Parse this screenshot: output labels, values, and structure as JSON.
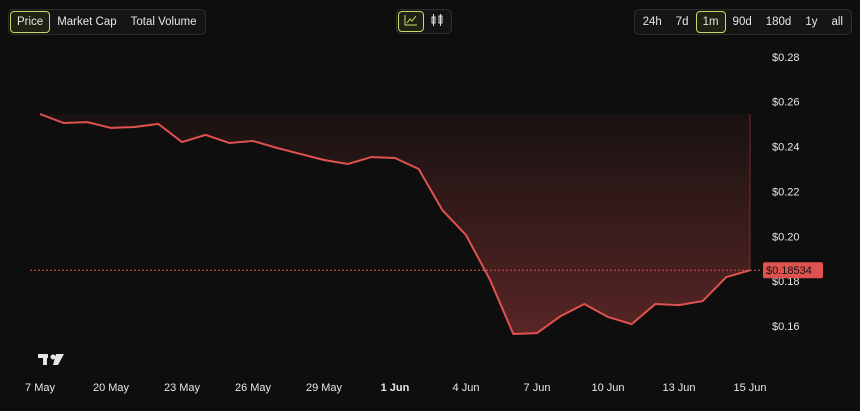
{
  "metric_tabs": {
    "items": [
      "Price",
      "Market Cap",
      "Total Volume"
    ],
    "active": 0
  },
  "range_tabs": {
    "items": [
      "24h",
      "7d",
      "1m",
      "90d",
      "180d",
      "1y",
      "all"
    ],
    "active": 2
  },
  "chart_data": {
    "type": "line",
    "categories": [
      "7 May",
      null,
      null,
      "20 May",
      null,
      null,
      "23 May",
      null,
      null,
      "26 May",
      null,
      null,
      "29 May",
      null,
      null,
      "1 Jun",
      null,
      null,
      "4 Jun",
      null,
      null,
      "7 Jun",
      null,
      null,
      "10 Jun",
      null,
      null,
      "13 Jun",
      null,
      null,
      "15 Jun"
    ],
    "values": [
      0.255,
      0.251,
      0.2514,
      0.2488,
      0.2492,
      0.2506,
      0.2425,
      0.2457,
      0.2421,
      0.243,
      0.2399,
      0.2372,
      0.2345,
      0.2327,
      0.2358,
      0.2354,
      0.2305,
      0.2122,
      0.201,
      0.1814,
      0.1569,
      0.1573,
      0.1649,
      0.1703,
      0.1645,
      0.1613,
      0.1703,
      0.1698,
      0.1716,
      0.1823,
      0.18534
    ],
    "color": "#e0524f",
    "ylim": [
      0.152,
      0.284
    ],
    "yticks": [
      {
        "value": 0.16,
        "label": "$0.16"
      },
      {
        "value": 0.18,
        "label": "$0.18"
      },
      {
        "value": 0.2,
        "label": "$0.20"
      },
      {
        "value": 0.22,
        "label": "$0.22"
      },
      {
        "value": 0.24,
        "label": "$0.24"
      },
      {
        "value": 0.26,
        "label": "$0.26"
      },
      {
        "value": 0.28,
        "label": "$0.28"
      }
    ],
    "current_price": {
      "value": 0.18534,
      "label": "$0.18534"
    },
    "grid": false
  }
}
